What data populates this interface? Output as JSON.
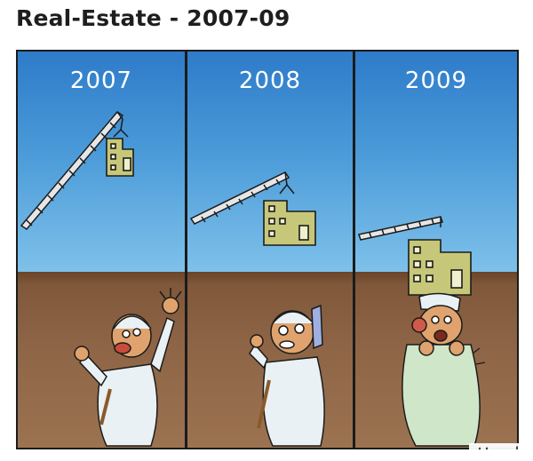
{
  "title": "Real-Estate - 2007-09",
  "panels": [
    {
      "year": "2007"
    },
    {
      "year": "2008"
    },
    {
      "year": "2009"
    }
  ],
  "signature": "Murali",
  "colors": {
    "sky_top": "#2e7bc9",
    "sky_bottom": "#7ec1ea",
    "ground": "#8d6445",
    "building": "#c7c77a",
    "robe_white": "#e9f1f4",
    "robe_green": "#cfe6c8",
    "skin": "#e0a36d"
  }
}
